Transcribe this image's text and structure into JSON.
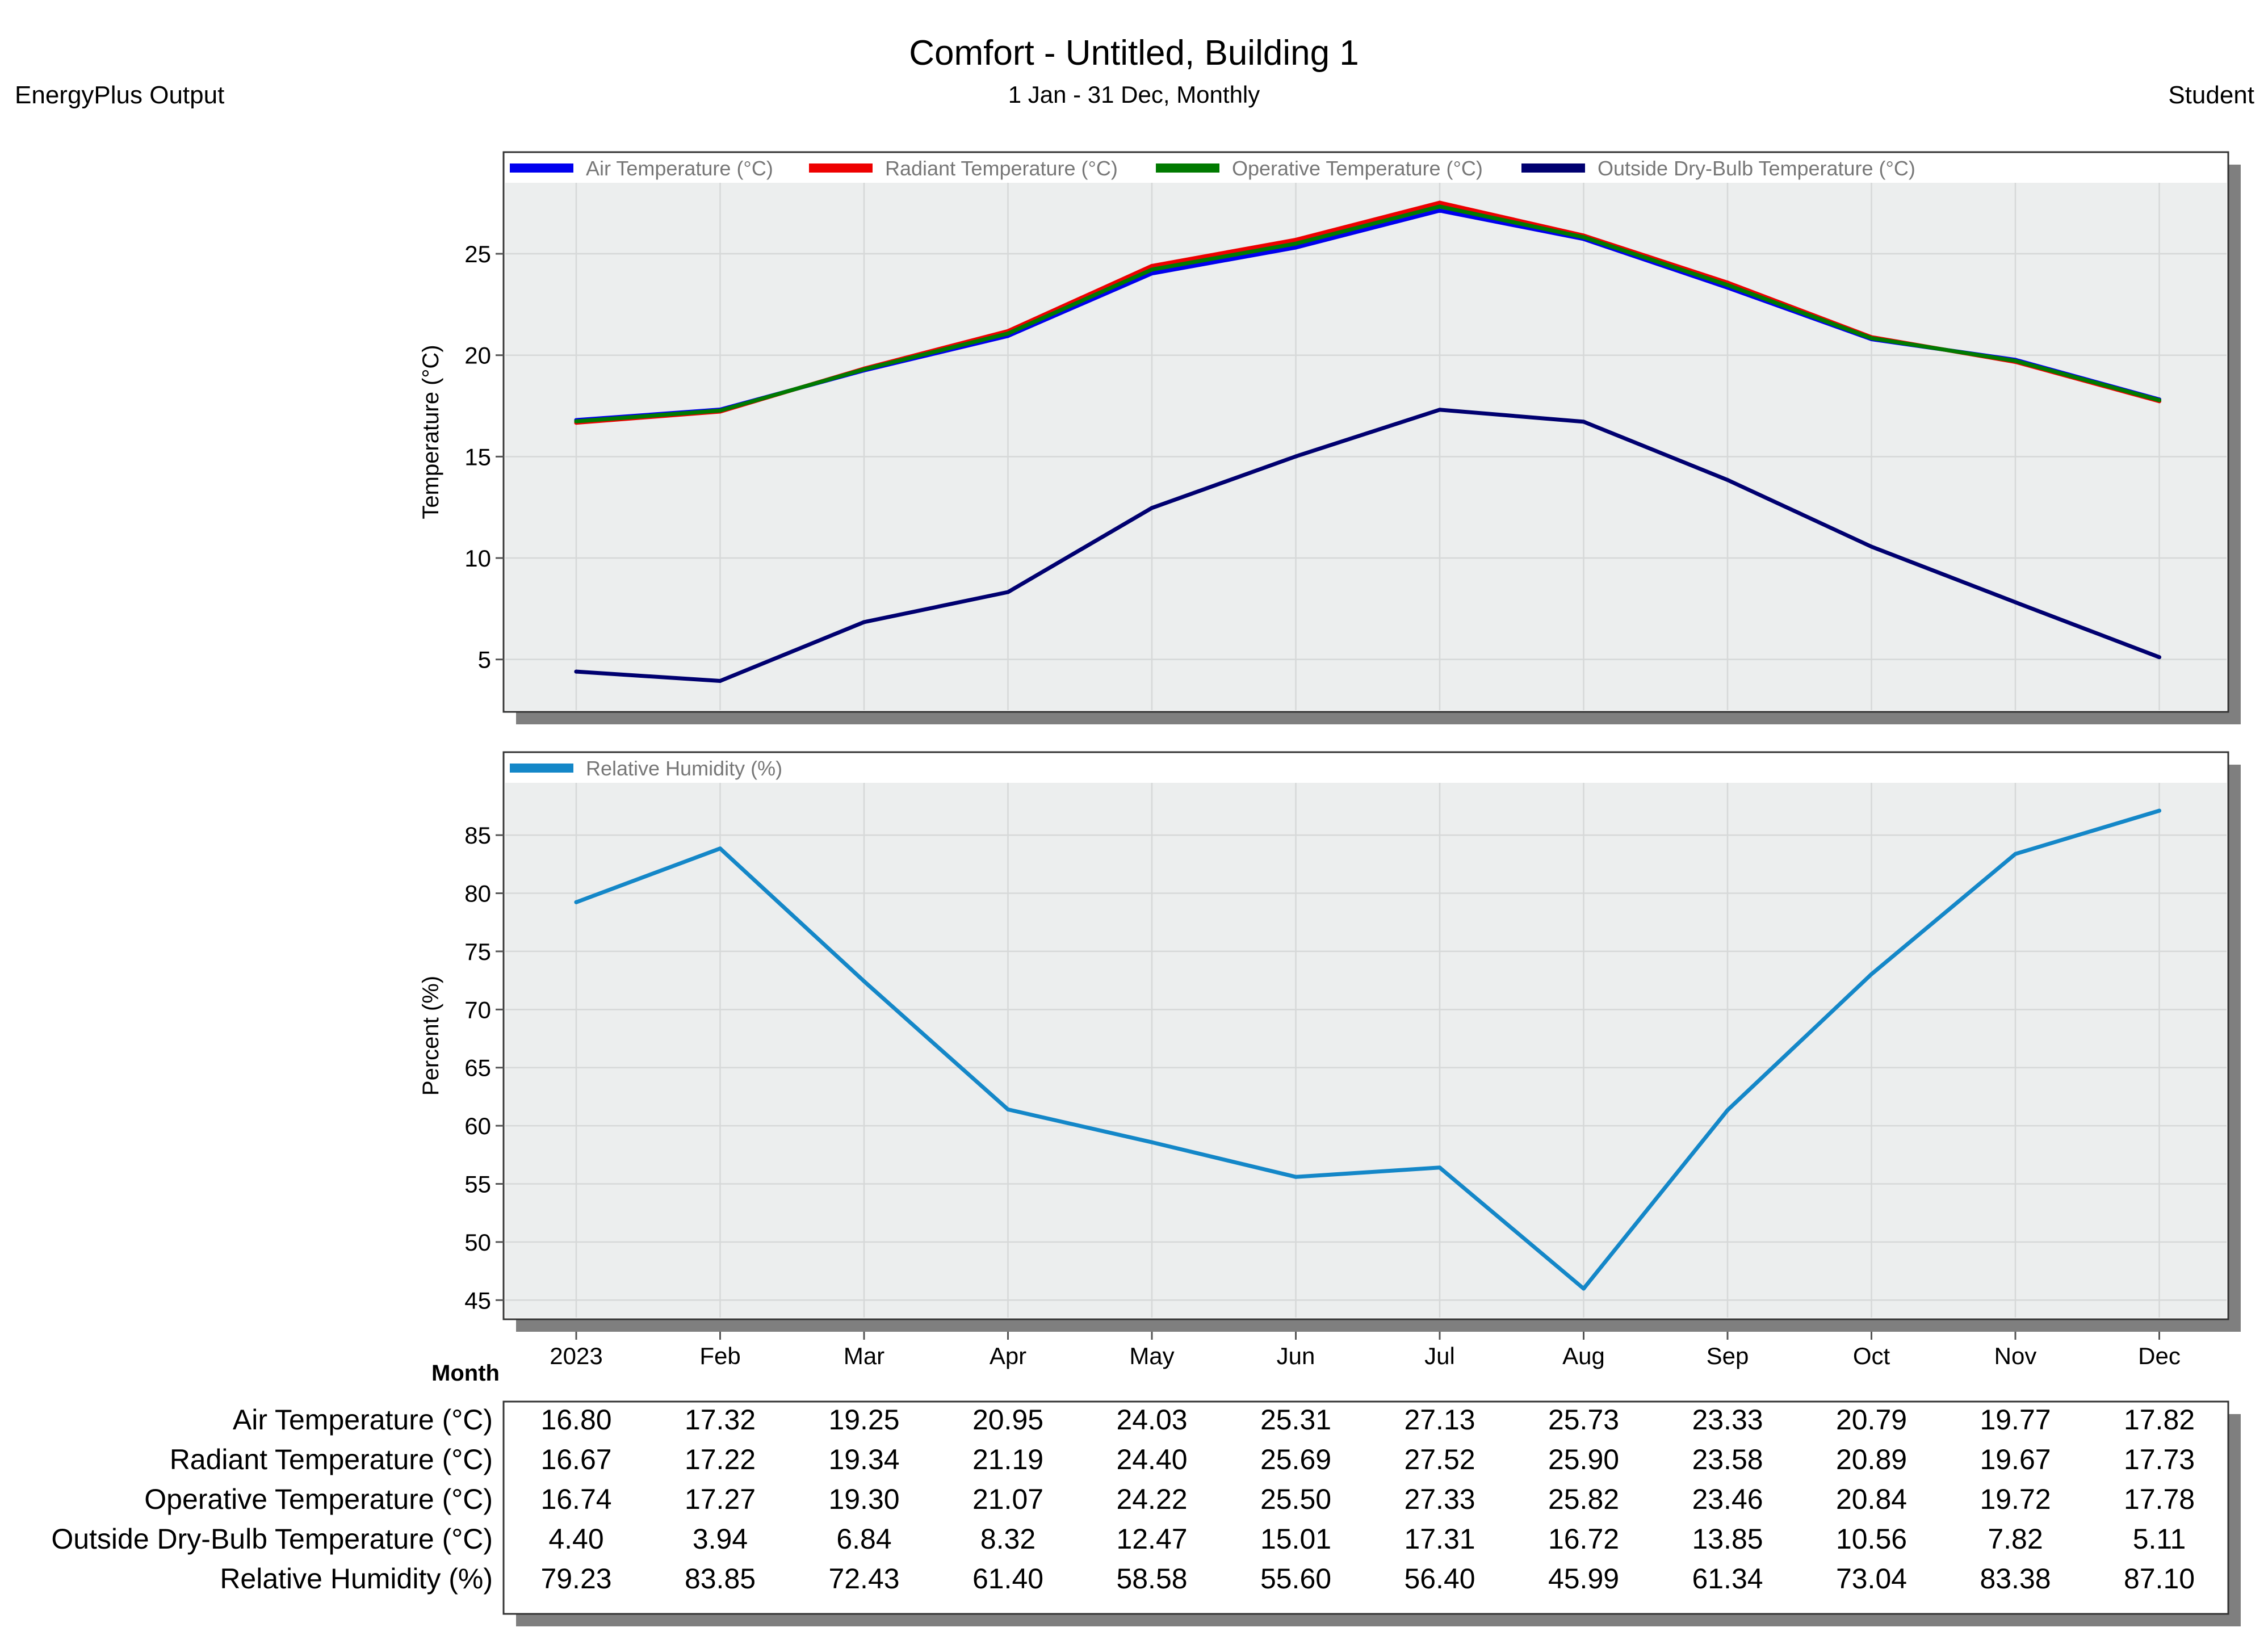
{
  "header": {
    "title": "Comfort - Untitled, Building 1",
    "subtitle": "1 Jan - 31 Dec, Monthly",
    "source": "EnergyPlus Output",
    "user": "Student"
  },
  "colors": {
    "air": "#0000ee",
    "radiant": "#ee0000",
    "operative": "#007a00",
    "outside": "#000070",
    "humidity": "#1487c8"
  },
  "chart_data": [
    {
      "type": "line",
      "title": "Comfort - Untitled, Building 1",
      "subtitle": "1 Jan - 31 Dec, Monthly",
      "ylabel": "Temperature (°C)",
      "xlabel": "Month",
      "ylim": [
        2.5,
        28.5
      ],
      "yticks": [
        5,
        10,
        15,
        20,
        25
      ],
      "categories": [
        "2023",
        "Feb",
        "Mar",
        "Apr",
        "May",
        "Jun",
        "Jul",
        "Aug",
        "Sep",
        "Oct",
        "Nov",
        "Dec"
      ],
      "legend_position": "top",
      "grid": true,
      "series": [
        {
          "name": "Air Temperature (°C)",
          "color_key": "air",
          "values": [
            16.8,
            17.32,
            19.25,
            20.95,
            24.03,
            25.31,
            27.13,
            25.73,
            23.33,
            20.79,
            19.77,
            17.82
          ]
        },
        {
          "name": "Radiant Temperature (°C)",
          "color_key": "radiant",
          "values": [
            16.67,
            17.22,
            19.34,
            21.19,
            24.4,
            25.69,
            27.52,
            25.9,
            23.58,
            20.89,
            19.67,
            17.73
          ]
        },
        {
          "name": "Operative Temperature (°C)",
          "color_key": "operative",
          "values": [
            16.74,
            17.27,
            19.3,
            21.07,
            24.22,
            25.5,
            27.33,
            25.82,
            23.46,
            20.84,
            19.72,
            17.78
          ]
        },
        {
          "name": "Outside Dry-Bulb Temperature (°C)",
          "color_key": "outside",
          "values": [
            4.4,
            3.94,
            6.84,
            8.32,
            12.47,
            15.01,
            17.31,
            16.72,
            13.85,
            10.56,
            7.82,
            5.11
          ]
        }
      ]
    },
    {
      "type": "line",
      "ylabel": "Percent (%)",
      "xlabel": "Month",
      "ylim": [
        43.5,
        89.5
      ],
      "yticks": [
        45,
        50,
        55,
        60,
        65,
        70,
        75,
        80,
        85
      ],
      "categories": [
        "2023",
        "Feb",
        "Mar",
        "Apr",
        "May",
        "Jun",
        "Jul",
        "Aug",
        "Sep",
        "Oct",
        "Nov",
        "Dec"
      ],
      "legend_position": "top",
      "grid": true,
      "series": [
        {
          "name": "Relative Humidity (%)",
          "color_key": "humidity",
          "values": [
            79.23,
            83.85,
            72.43,
            61.4,
            58.58,
            55.6,
            56.4,
            45.99,
            61.34,
            73.04,
            83.38,
            87.1
          ]
        }
      ]
    },
    {
      "type": "table",
      "rows": [
        {
          "label": "Air Temperature (°C)",
          "cells": [
            "16.80",
            "17.32",
            "19.25",
            "20.95",
            "24.03",
            "25.31",
            "27.13",
            "25.73",
            "23.33",
            "20.79",
            "19.77",
            "17.82"
          ]
        },
        {
          "label": "Radiant Temperature (°C)",
          "cells": [
            "16.67",
            "17.22",
            "19.34",
            "21.19",
            "24.40",
            "25.69",
            "27.52",
            "25.90",
            "23.58",
            "20.89",
            "19.67",
            "17.73"
          ]
        },
        {
          "label": "Operative Temperature (°C)",
          "cells": [
            "16.74",
            "17.27",
            "19.30",
            "21.07",
            "24.22",
            "25.50",
            "27.33",
            "25.82",
            "23.46",
            "20.84",
            "19.72",
            "17.78"
          ]
        },
        {
          "label": "Outside Dry-Bulb Temperature (°C)",
          "cells": [
            "4.40",
            "3.94",
            "6.84",
            "8.32",
            "12.47",
            "15.01",
            "17.31",
            "16.72",
            "13.85",
            "10.56",
            "7.82",
            "5.11"
          ]
        },
        {
          "label": "Relative Humidity (%)",
          "cells": [
            "79.23",
            "83.85",
            "72.43",
            "61.40",
            "58.58",
            "55.60",
            "56.40",
            "45.99",
            "61.34",
            "73.04",
            "83.38",
            "87.10"
          ]
        }
      ]
    }
  ]
}
